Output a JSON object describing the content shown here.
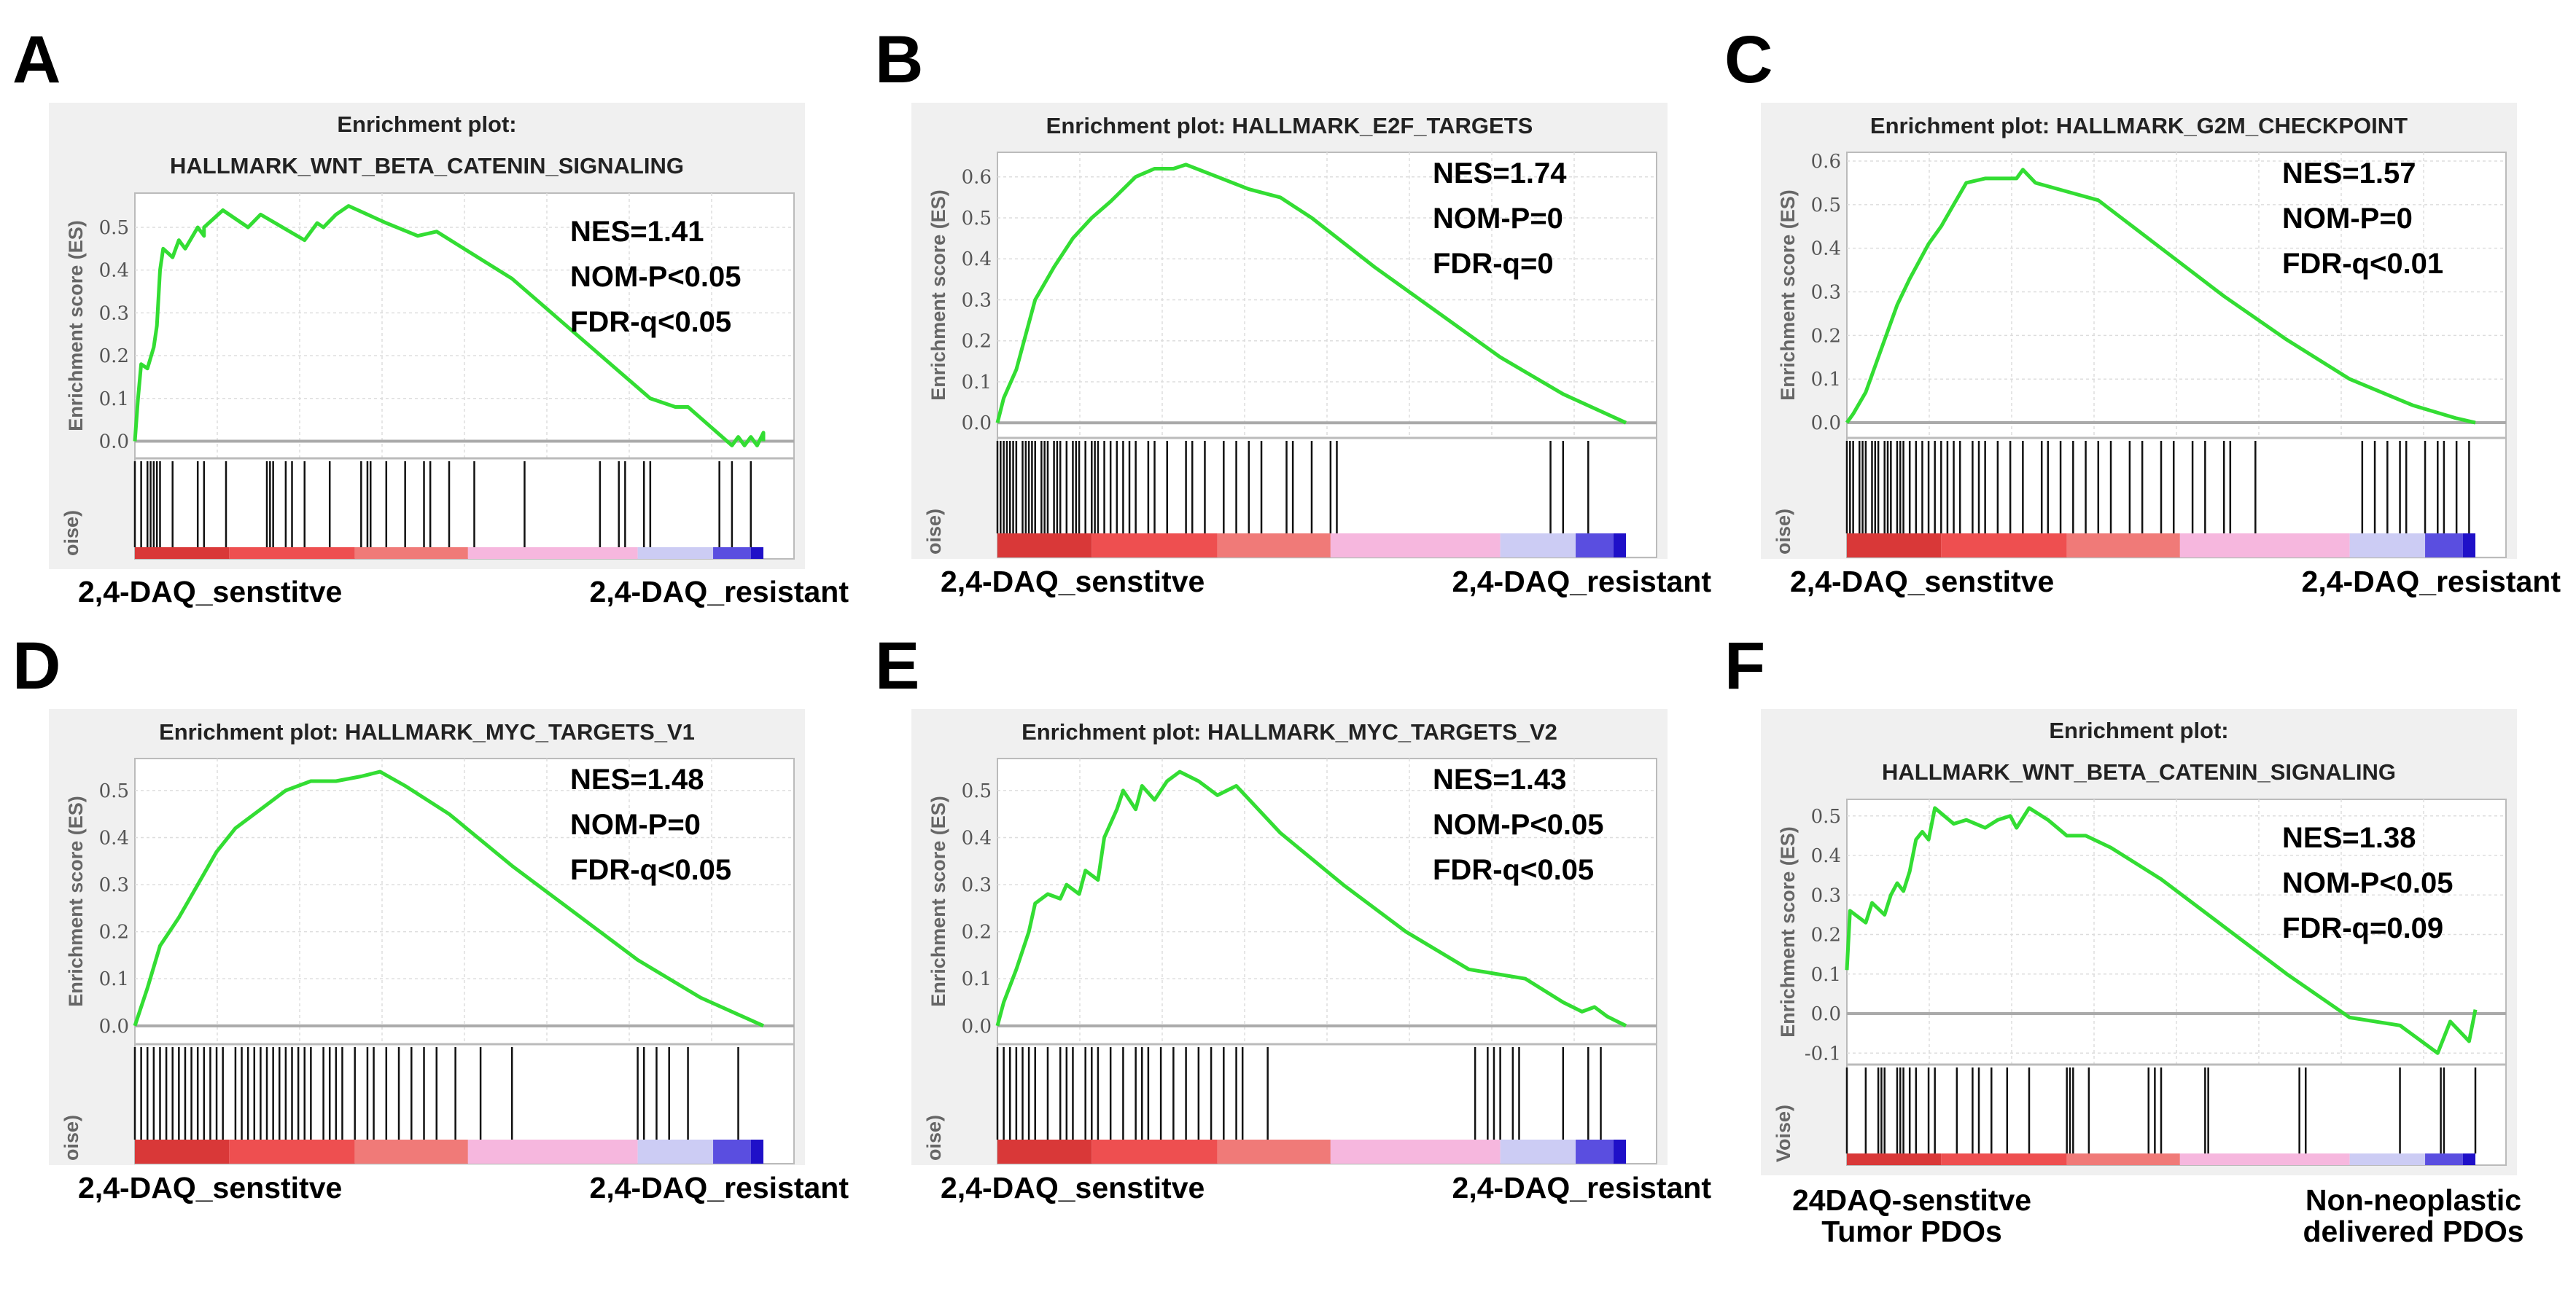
{
  "chart_data": [
    {
      "panel": "A",
      "type": "line",
      "title_lines": [
        "Enrichment plot:",
        "HALLMARK_WNT_BETA_CATENIN_SIGNALING"
      ],
      "ylabel": "Enrichment score (ES)",
      "rank_axis_fragment": "oise)",
      "ylim": [
        -0.04,
        0.58
      ],
      "yticks": [
        "0.0",
        "0.1",
        "0.2",
        "0.3",
        "0.4",
        "0.5"
      ],
      "stats": [
        "NES=1.41",
        "NOM-P<0.05",
        "FDR-q<0.05"
      ],
      "xlabel_left": [
        "2,4-DAQ_senstitve"
      ],
      "xlabel_right": [
        "2,4-DAQ_resistant"
      ],
      "es_curve": [
        [
          0,
          0
        ],
        [
          0.005,
          0.1
        ],
        [
          0.01,
          0.18
        ],
        [
          0.02,
          0.17
        ],
        [
          0.03,
          0.22
        ],
        [
          0.035,
          0.27
        ],
        [
          0.04,
          0.4
        ],
        [
          0.045,
          0.45
        ],
        [
          0.06,
          0.43
        ],
        [
          0.07,
          0.47
        ],
        [
          0.08,
          0.45
        ],
        [
          0.1,
          0.5
        ],
        [
          0.11,
          0.48
        ],
        [
          0.11,
          0.5
        ],
        [
          0.14,
          0.54
        ],
        [
          0.18,
          0.5
        ],
        [
          0.2,
          0.53
        ],
        [
          0.27,
          0.47
        ],
        [
          0.29,
          0.51
        ],
        [
          0.3,
          0.5
        ],
        [
          0.32,
          0.53
        ],
        [
          0.34,
          0.55
        ],
        [
          0.4,
          0.51
        ],
        [
          0.45,
          0.48
        ],
        [
          0.48,
          0.49
        ],
        [
          0.6,
          0.38
        ],
        [
          0.82,
          0.1
        ],
        [
          0.86,
          0.08
        ],
        [
          0.88,
          0.08
        ],
        [
          0.95,
          -0.01
        ],
        [
          0.96,
          0.01
        ],
        [
          0.97,
          -0.01
        ],
        [
          0.98,
          0.01
        ],
        [
          0.99,
          -0.01
        ],
        [
          1,
          0.02
        ],
        [
          1,
          0
        ]
      ],
      "hits": [
        0.0,
        0.01,
        0.02,
        0.025,
        0.03,
        0.035,
        0.04,
        0.06,
        0.1,
        0.11,
        0.145,
        0.21,
        0.215,
        0.22,
        0.24,
        0.25,
        0.27,
        0.31,
        0.36,
        0.37,
        0.375,
        0.4,
        0.43,
        0.46,
        0.47,
        0.5,
        0.54,
        0.62,
        0.74,
        0.77,
        0.78,
        0.81,
        0.82,
        0.93,
        0.95,
        0.98
      ]
    },
    {
      "panel": "B",
      "type": "line",
      "title_lines": [
        "Enrichment plot: HALLMARK_E2F_TARGETS"
      ],
      "ylabel": "Enrichment score (ES)",
      "rank_axis_fragment": "oise)",
      "ylim": [
        -0.037,
        0.66
      ],
      "yticks": [
        "0.0",
        "0.1",
        "0.2",
        "0.3",
        "0.4",
        "0.5",
        "0.6"
      ],
      "stats": [
        "NES=1.74",
        "NOM-P=0",
        "FDR-q=0"
      ],
      "xlabel_left": [
        "2,4-DAQ_senstitve"
      ],
      "xlabel_right": [
        "2,4-DAQ_resistant"
      ],
      "es_curve": [
        [
          0,
          0
        ],
        [
          0.01,
          0.06
        ],
        [
          0.03,
          0.13
        ],
        [
          0.06,
          0.3
        ],
        [
          0.09,
          0.38
        ],
        [
          0.12,
          0.45
        ],
        [
          0.15,
          0.5
        ],
        [
          0.18,
          0.54
        ],
        [
          0.22,
          0.6
        ],
        [
          0.25,
          0.62
        ],
        [
          0.28,
          0.62
        ],
        [
          0.3,
          0.63
        ],
        [
          0.35,
          0.6
        ],
        [
          0.4,
          0.57
        ],
        [
          0.45,
          0.55
        ],
        [
          0.5,
          0.5
        ],
        [
          0.6,
          0.38
        ],
        [
          0.7,
          0.27
        ],
        [
          0.8,
          0.16
        ],
        [
          0.9,
          0.07
        ],
        [
          1,
          0
        ]
      ],
      "hits": [
        0.0,
        0.005,
        0.01,
        0.015,
        0.02,
        0.025,
        0.03,
        0.04,
        0.045,
        0.05,
        0.055,
        0.06,
        0.07,
        0.075,
        0.08,
        0.09,
        0.095,
        0.1,
        0.11,
        0.12,
        0.125,
        0.13,
        0.14,
        0.15,
        0.155,
        0.16,
        0.17,
        0.18,
        0.19,
        0.2,
        0.21,
        0.22,
        0.24,
        0.25,
        0.27,
        0.3,
        0.31,
        0.33,
        0.36,
        0.38,
        0.4,
        0.42,
        0.46,
        0.47,
        0.5,
        0.53,
        0.54,
        0.88,
        0.9,
        0.94
      ]
    },
    {
      "panel": "C",
      "type": "line",
      "title_lines": [
        "Enrichment plot: HALLMARK_G2M_CHECKPOINT"
      ],
      "ylabel": "Enrichment score (ES)",
      "rank_axis_fragment": "oise)",
      "ylim": [
        -0.035,
        0.62
      ],
      "yticks": [
        "0.0",
        "0.1",
        "0.2",
        "0.3",
        "0.4",
        "0.5",
        "0.6"
      ],
      "stats": [
        "NES=1.57",
        "NOM-P=0",
        "FDR-q<0.01"
      ],
      "xlabel_left": [
        "2,4-DAQ_senstitve"
      ],
      "xlabel_right": [
        "2,4-DAQ_resistant"
      ],
      "es_curve": [
        [
          0,
          0
        ],
        [
          0.01,
          0.02
        ],
        [
          0.03,
          0.07
        ],
        [
          0.05,
          0.15
        ],
        [
          0.08,
          0.27
        ],
        [
          0.1,
          0.33
        ],
        [
          0.13,
          0.41
        ],
        [
          0.15,
          0.45
        ],
        [
          0.17,
          0.5
        ],
        [
          0.19,
          0.55
        ],
        [
          0.22,
          0.56
        ],
        [
          0.25,
          0.56
        ],
        [
          0.27,
          0.56
        ],
        [
          0.28,
          0.58
        ],
        [
          0.3,
          0.55
        ],
        [
          0.35,
          0.53
        ],
        [
          0.4,
          0.51
        ],
        [
          0.5,
          0.4
        ],
        [
          0.6,
          0.29
        ],
        [
          0.7,
          0.19
        ],
        [
          0.8,
          0.1
        ],
        [
          0.9,
          0.04
        ],
        [
          0.97,
          0.01
        ],
        [
          1,
          0
        ]
      ],
      "hits": [
        0.0,
        0.005,
        0.01,
        0.02,
        0.025,
        0.03,
        0.04,
        0.045,
        0.05,
        0.06,
        0.065,
        0.07,
        0.08,
        0.085,
        0.09,
        0.1,
        0.11,
        0.12,
        0.13,
        0.14,
        0.15,
        0.16,
        0.17,
        0.18,
        0.2,
        0.21,
        0.22,
        0.24,
        0.26,
        0.28,
        0.31,
        0.32,
        0.34,
        0.36,
        0.38,
        0.4,
        0.42,
        0.45,
        0.47,
        0.5,
        0.52,
        0.55,
        0.57,
        0.6,
        0.61,
        0.65,
        0.82,
        0.84,
        0.86,
        0.88,
        0.89,
        0.92,
        0.94,
        0.95,
        0.97,
        0.99
      ]
    },
    {
      "panel": "D",
      "type": "line",
      "title_lines": [
        "Enrichment plot: HALLMARK_MYC_TARGETS_V1"
      ],
      "ylabel": "Enrichment score (ES)",
      "rank_axis_fragment": "oise)",
      "ylim": [
        -0.039,
        0.568
      ],
      "yticks": [
        "0.0",
        "0.1",
        "0.2",
        "0.3",
        "0.4",
        "0.5"
      ],
      "stats": [
        "NES=1.48",
        "NOM-P=0",
        "FDR-q<0.05"
      ],
      "xlabel_left": [
        "2,4-DAQ_senstitve"
      ],
      "xlabel_right": [
        "2,4-DAQ_resistant"
      ],
      "es_curve": [
        [
          0,
          0
        ],
        [
          0.02,
          0.08
        ],
        [
          0.04,
          0.17
        ],
        [
          0.07,
          0.23
        ],
        [
          0.1,
          0.3
        ],
        [
          0.13,
          0.37
        ],
        [
          0.16,
          0.42
        ],
        [
          0.2,
          0.46
        ],
        [
          0.24,
          0.5
        ],
        [
          0.28,
          0.52
        ],
        [
          0.32,
          0.52
        ],
        [
          0.36,
          0.53
        ],
        [
          0.39,
          0.54
        ],
        [
          0.43,
          0.51
        ],
        [
          0.5,
          0.45
        ],
        [
          0.6,
          0.34
        ],
        [
          0.7,
          0.24
        ],
        [
          0.8,
          0.14
        ],
        [
          0.9,
          0.06
        ],
        [
          1,
          0
        ]
      ],
      "hits": [
        0.0,
        0.01,
        0.02,
        0.03,
        0.04,
        0.05,
        0.06,
        0.07,
        0.08,
        0.09,
        0.1,
        0.11,
        0.12,
        0.13,
        0.14,
        0.16,
        0.17,
        0.18,
        0.19,
        0.2,
        0.21,
        0.22,
        0.23,
        0.24,
        0.25,
        0.26,
        0.27,
        0.28,
        0.3,
        0.31,
        0.32,
        0.33,
        0.35,
        0.37,
        0.38,
        0.4,
        0.42,
        0.44,
        0.46,
        0.48,
        0.51,
        0.55,
        0.6,
        0.8,
        0.81,
        0.83,
        0.85,
        0.88,
        0.96
      ]
    },
    {
      "panel": "E",
      "type": "line",
      "title_lines": [
        "Enrichment plot: HALLMARK_MYC_TARGETS_V2"
      ],
      "ylabel": "Enrichment score (ES)",
      "rank_axis_fragment": "oise)",
      "ylim": [
        -0.039,
        0.568
      ],
      "yticks": [
        "0.0",
        "0.1",
        "0.2",
        "0.3",
        "0.4",
        "0.5"
      ],
      "stats": [
        "NES=1.43",
        "NOM-P<0.05",
        "FDR-q<0.05"
      ],
      "xlabel_left": [
        "2,4-DAQ_senstitve"
      ],
      "xlabel_right": [
        "2,4-DAQ_resistant"
      ],
      "es_curve": [
        [
          0,
          0
        ],
        [
          0.01,
          0.05
        ],
        [
          0.03,
          0.12
        ],
        [
          0.05,
          0.2
        ],
        [
          0.06,
          0.26
        ],
        [
          0.08,
          0.28
        ],
        [
          0.1,
          0.27
        ],
        [
          0.11,
          0.3
        ],
        [
          0.13,
          0.28
        ],
        [
          0.14,
          0.33
        ],
        [
          0.16,
          0.31
        ],
        [
          0.17,
          0.4
        ],
        [
          0.19,
          0.46
        ],
        [
          0.2,
          0.5
        ],
        [
          0.22,
          0.46
        ],
        [
          0.23,
          0.51
        ],
        [
          0.25,
          0.48
        ],
        [
          0.27,
          0.52
        ],
        [
          0.29,
          0.54
        ],
        [
          0.32,
          0.52
        ],
        [
          0.35,
          0.49
        ],
        [
          0.38,
          0.51
        ],
        [
          0.45,
          0.41
        ],
        [
          0.55,
          0.3
        ],
        [
          0.65,
          0.2
        ],
        [
          0.75,
          0.12
        ],
        [
          0.84,
          0.1
        ],
        [
          0.9,
          0.05
        ],
        [
          0.93,
          0.03
        ],
        [
          0.95,
          0.04
        ],
        [
          0.97,
          0.02
        ],
        [
          1,
          0
        ]
      ],
      "hits": [
        0.0,
        0.01,
        0.02,
        0.03,
        0.04,
        0.05,
        0.06,
        0.08,
        0.1,
        0.11,
        0.12,
        0.14,
        0.15,
        0.16,
        0.18,
        0.2,
        0.22,
        0.23,
        0.24,
        0.26,
        0.28,
        0.3,
        0.32,
        0.34,
        0.36,
        0.38,
        0.39,
        0.43,
        0.76,
        0.78,
        0.79,
        0.8,
        0.82,
        0.83,
        0.9,
        0.94,
        0.96
      ]
    },
    {
      "panel": "F",
      "type": "line",
      "title_lines": [
        "Enrichment plot:",
        "HALLMARK_WNT_BETA_CATENIN_SIGNALING"
      ],
      "ylabel": "Enrichment score (ES)",
      "rank_axis_fragment": "Voise)",
      "ylim": [
        -0.129,
        0.542
      ],
      "yticks": [
        "-0.1",
        "0.0",
        "0.1",
        "0.2",
        "0.3",
        "0.4",
        "0.5"
      ],
      "stats": [
        "NES=1.38",
        "NOM-P<0.05",
        "FDR-q=0.09"
      ],
      "xlabel_left": [
        "24DAQ-senstitve",
        "Tumor PDOs"
      ],
      "xlabel_right": [
        "Non-neoplastic",
        "delivered PDOs"
      ],
      "es_curve": [
        [
          0,
          0.11
        ],
        [
          0.005,
          0.26
        ],
        [
          0.03,
          0.23
        ],
        [
          0.04,
          0.28
        ],
        [
          0.06,
          0.25
        ],
        [
          0.07,
          0.3
        ],
        [
          0.08,
          0.33
        ],
        [
          0.09,
          0.31
        ],
        [
          0.1,
          0.36
        ],
        [
          0.11,
          0.44
        ],
        [
          0.12,
          0.46
        ],
        [
          0.13,
          0.44
        ],
        [
          0.14,
          0.52
        ],
        [
          0.17,
          0.48
        ],
        [
          0.19,
          0.49
        ],
        [
          0.22,
          0.47
        ],
        [
          0.24,
          0.49
        ],
        [
          0.26,
          0.5
        ],
        [
          0.27,
          0.47
        ],
        [
          0.29,
          0.52
        ],
        [
          0.32,
          0.49
        ],
        [
          0.35,
          0.45
        ],
        [
          0.38,
          0.45
        ],
        [
          0.42,
          0.42
        ],
        [
          0.5,
          0.34
        ],
        [
          0.6,
          0.22
        ],
        [
          0.7,
          0.1
        ],
        [
          0.8,
          -0.01
        ],
        [
          0.88,
          -0.03
        ],
        [
          0.94,
          -0.1
        ],
        [
          0.96,
          -0.02
        ],
        [
          0.99,
          -0.07
        ],
        [
          1,
          0.01
        ]
      ],
      "hits": [
        0.0,
        0.03,
        0.05,
        0.055,
        0.06,
        0.08,
        0.085,
        0.09,
        0.1,
        0.11,
        0.13,
        0.14,
        0.175,
        0.2,
        0.21,
        0.23,
        0.255,
        0.29,
        0.35,
        0.355,
        0.36,
        0.385,
        0.48,
        0.49,
        0.5,
        0.57,
        0.575,
        0.72,
        0.73,
        0.88,
        0.945,
        0.95,
        1.0
      ]
    }
  ],
  "colors": {
    "curve": "#33dd33",
    "hit": "#111111",
    "frame_bg": "#f0f0f0"
  },
  "rank_bar": [
    {
      "to": 0.15,
      "color": "#d93838"
    },
    {
      "to": 0.35,
      "color": "#ee4f50"
    },
    {
      "to": 0.53,
      "color": "#f07a78"
    },
    {
      "to": 0.8,
      "color": "#f6b7de"
    },
    {
      "to": 0.92,
      "color": "#ccccf4"
    },
    {
      "to": 0.98,
      "color": "#5a4ee0"
    },
    {
      "to": 1.0,
      "color": "#1f10c8"
    }
  ]
}
